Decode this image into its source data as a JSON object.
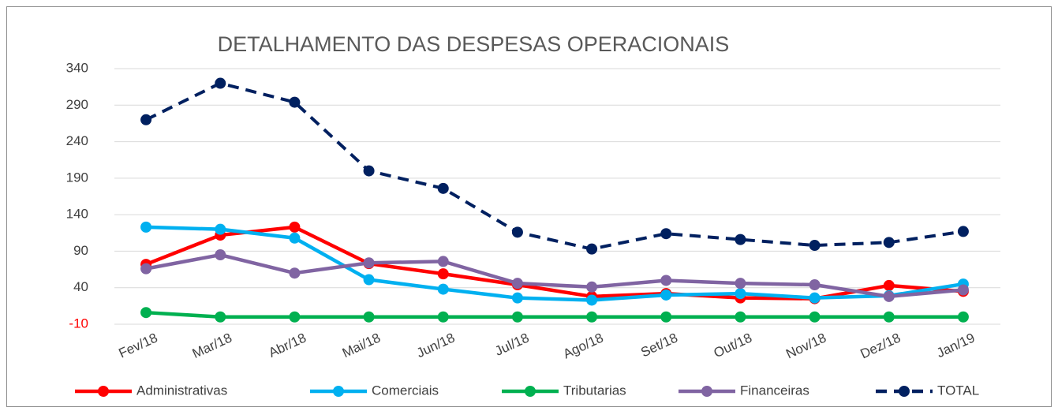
{
  "chart_data": {
    "type": "line",
    "title": "DETALHAMENTO DAS DESPESAS OPERACIONAIS",
    "categories": [
      "Fev/18",
      "Mar/18",
      "Abr/18",
      "Mai/18",
      "Jun/18",
      "Jul/18",
      "Ago/18",
      "Set/18",
      "Out/18",
      "Nov/18",
      "Dez/18",
      "Jan/19"
    ],
    "series": [
      {
        "name": "Administrativas",
        "color": "#ff0000",
        "values": [
          72,
          112,
          123,
          73,
          59,
          44,
          28,
          32,
          26,
          25,
          43,
          35
        ]
      },
      {
        "name": "Comerciais",
        "color": "#00b0f0",
        "values": [
          123,
          120,
          108,
          51,
          38,
          26,
          23,
          30,
          32,
          26,
          29,
          45
        ]
      },
      {
        "name": "Tributarias",
        "color": "#00b050",
        "values": [
          6,
          0,
          0,
          0,
          0,
          0,
          0,
          0,
          0,
          0,
          0,
          0
        ]
      },
      {
        "name": "Financeiras",
        "color": "#8064a2",
        "values": [
          66,
          85,
          60,
          74,
          76,
          46,
          41,
          50,
          46,
          44,
          28,
          37
        ]
      },
      {
        "name": "TOTAL",
        "color": "#002060",
        "line_style": "dashed",
        "values": [
          270,
          320,
          294,
          200,
          176,
          116,
          93,
          114,
          106,
          98,
          102,
          117
        ]
      }
    ],
    "ylim": [
      -10,
      340
    ],
    "yticks": [
      -10,
      40,
      90,
      140,
      190,
      240,
      290,
      340
    ],
    "grid": true,
    "negative_color": "#ff0000",
    "legend": "bottom"
  }
}
